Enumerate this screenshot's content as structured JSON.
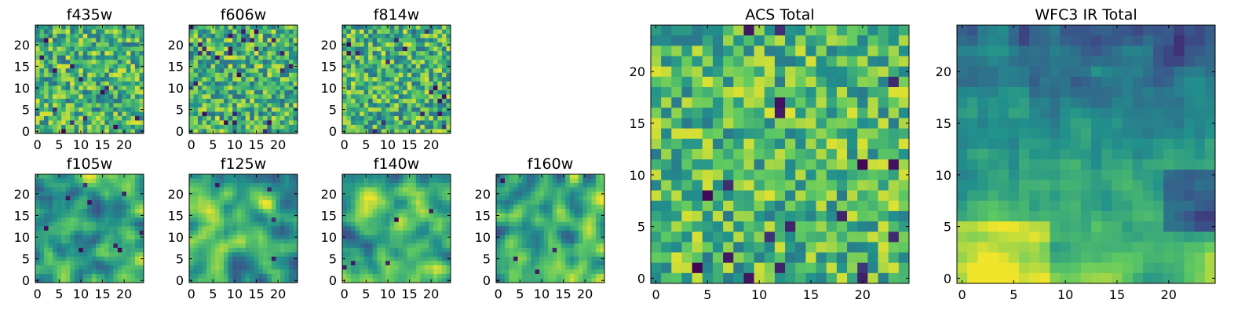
{
  "colormap": "viridis",
  "colors": {
    "frame": "#000000",
    "background": "#ffffff",
    "viridis_stops": [
      "#440154",
      "#3b528b",
      "#21918c",
      "#5ec962",
      "#fde725"
    ]
  },
  "chart_data": [
    {
      "type": "heatmap",
      "title": "f435w",
      "xlim": [
        0,
        24
      ],
      "ylim": [
        0,
        24
      ],
      "xticks": [
        "0",
        "5",
        "10",
        "15",
        "20"
      ],
      "yticks": [
        "0",
        "5",
        "10",
        "15",
        "20"
      ],
      "grid": false,
      "texture": "pixel-noise",
      "seed": 11,
      "smooth": 0,
      "trend": 0,
      "value_range": [
        0.35,
        0.95
      ],
      "dark_fraction": 0.03
    },
    {
      "type": "heatmap",
      "title": "f606w",
      "xlim": [
        0,
        24
      ],
      "ylim": [
        0,
        24
      ],
      "xticks": [
        "0",
        "5",
        "10",
        "15",
        "20"
      ],
      "yticks": [
        "0",
        "5",
        "10",
        "15",
        "20"
      ],
      "grid": false,
      "texture": "pixel-noise",
      "seed": 23,
      "smooth": 0,
      "trend": 0,
      "value_range": [
        0.35,
        0.95
      ],
      "dark_fraction": 0.035
    },
    {
      "type": "heatmap",
      "title": "f814w",
      "xlim": [
        0,
        24
      ],
      "ylim": [
        0,
        24
      ],
      "xticks": [
        "0",
        "5",
        "10",
        "15",
        "20"
      ],
      "yticks": [
        "0",
        "5",
        "10",
        "15",
        "20"
      ],
      "grid": false,
      "texture": "pixel-noise",
      "seed": 37,
      "smooth": 0,
      "trend": 0,
      "value_range": [
        0.35,
        0.95
      ],
      "dark_fraction": 0.03
    },
    {
      "type": "heatmap",
      "title": "f105w",
      "xlim": [
        0,
        24
      ],
      "ylim": [
        0,
        24
      ],
      "xticks": [
        "0",
        "5",
        "10",
        "15",
        "20"
      ],
      "yticks": [
        "0",
        "5",
        "10",
        "15",
        "20"
      ],
      "grid": false,
      "texture": "smooth-noise",
      "seed": 41,
      "smooth": 2,
      "trend": 0,
      "value_range": [
        0.25,
        0.98
      ],
      "dark_fraction": 0.01
    },
    {
      "type": "heatmap",
      "title": "f125w",
      "xlim": [
        0,
        24
      ],
      "ylim": [
        0,
        24
      ],
      "xticks": [
        "0",
        "5",
        "10",
        "15",
        "20"
      ],
      "yticks": [
        "0",
        "5",
        "10",
        "15",
        "20"
      ],
      "grid": false,
      "texture": "smooth-noise",
      "seed": 53,
      "smooth": 2,
      "trend": 0,
      "value_range": [
        0.25,
        0.98
      ],
      "dark_fraction": 0.01
    },
    {
      "type": "heatmap",
      "title": "f140w",
      "xlim": [
        0,
        24
      ],
      "ylim": [
        0,
        24
      ],
      "xticks": [
        "0",
        "5",
        "10",
        "15",
        "20"
      ],
      "yticks": [
        "0",
        "5",
        "10",
        "15",
        "20"
      ],
      "grid": false,
      "texture": "smooth-noise",
      "seed": 67,
      "smooth": 2,
      "trend": 0,
      "value_range": [
        0.25,
        0.98
      ],
      "dark_fraction": 0.01
    },
    {
      "type": "heatmap",
      "title": "f160w",
      "xlim": [
        0,
        24
      ],
      "ylim": [
        0,
        24
      ],
      "xticks": [
        "0",
        "5",
        "10",
        "15",
        "20"
      ],
      "yticks": [
        "0",
        "5",
        "10",
        "15",
        "20"
      ],
      "grid": false,
      "texture": "smooth-noise",
      "seed": 79,
      "smooth": 2,
      "trend": 0,
      "value_range": [
        0.25,
        0.98
      ],
      "dark_fraction": 0.01
    },
    {
      "type": "heatmap",
      "title": "ACS Total",
      "xlim": [
        0,
        24
      ],
      "ylim": [
        0,
        24
      ],
      "xticks": [
        "0",
        "5",
        "10",
        "15",
        "20"
      ],
      "yticks": [
        "0",
        "5",
        "10",
        "15",
        "20"
      ],
      "grid": false,
      "texture": "pixel-noise",
      "seed": 97,
      "smooth": 0,
      "trend": 0,
      "value_range": [
        0.4,
        0.95
      ],
      "dark_fraction": 0.035
    },
    {
      "type": "heatmap",
      "title": "WFC3 IR Total",
      "xlim": [
        0,
        24
      ],
      "ylim": [
        0,
        24
      ],
      "xticks": [
        "0",
        "5",
        "10",
        "15",
        "20"
      ],
      "yticks": [
        "0",
        "5",
        "10",
        "15",
        "20"
      ],
      "grid": false,
      "texture": "smooth-gradient",
      "seed": 113,
      "smooth": 1,
      "trend": 1,
      "value_range": [
        0.1,
        0.98
      ],
      "dark_fraction": 0.0
    }
  ]
}
